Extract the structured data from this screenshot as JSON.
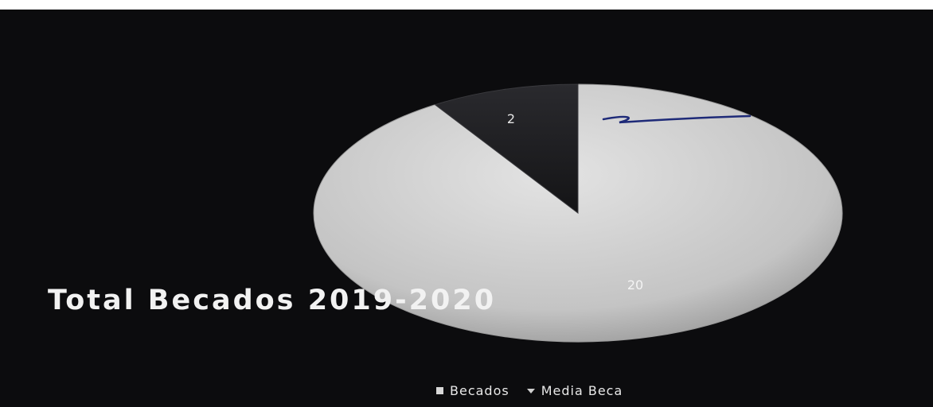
{
  "chart_data": {
    "type": "pie",
    "title": "Total Becados 2019-2020",
    "categories": [
      "Becados",
      "Media Beca"
    ],
    "values": [
      20,
      2
    ],
    "data_labels": [
      "20",
      "2"
    ],
    "colors": [
      "#c9c9c9",
      "#1b1b1e"
    ],
    "legend_position": "bottom"
  },
  "legend": {
    "items": [
      {
        "label": "Becados",
        "marker": "square"
      },
      {
        "label": "Media Beca",
        "marker": "triangle"
      }
    ]
  },
  "colors": {
    "background": "#0c0c0e",
    "page": "#ffffff",
    "pen": "#1e2a78"
  }
}
